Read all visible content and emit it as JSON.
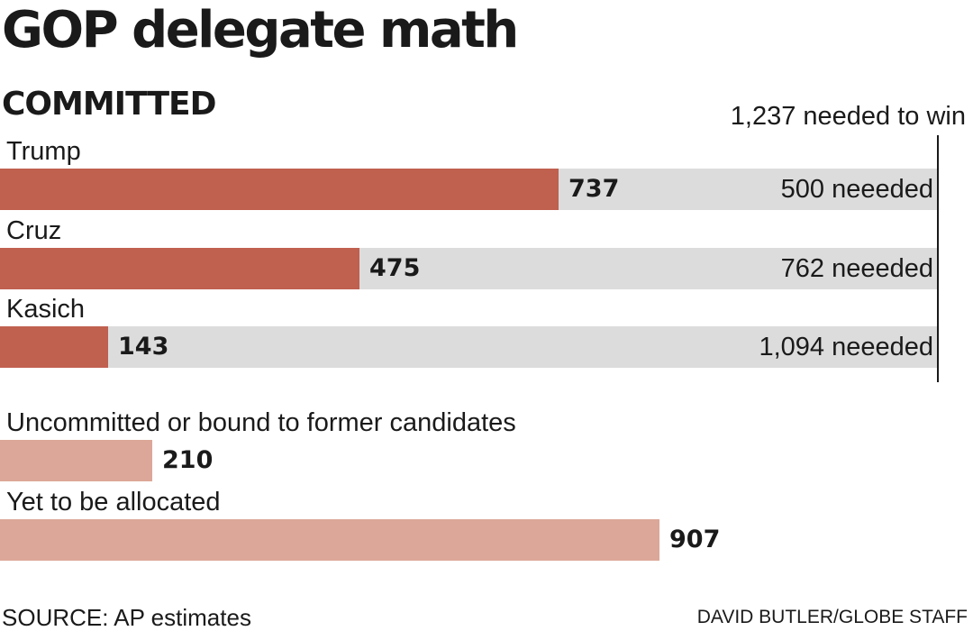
{
  "chart_data": {
    "type": "bar",
    "title": "GOP delegate math",
    "subtitle": "COMMITTED",
    "threshold_label": "1,237 needed to win",
    "threshold": 1237,
    "committed": [
      {
        "name": "Trump",
        "value": 737,
        "value_label": "737",
        "needed_label": "500 neeeded"
      },
      {
        "name": "Cruz",
        "value": 475,
        "value_label": "475",
        "needed_label": "762 neeeded"
      },
      {
        "name": "Kasich",
        "value": 143,
        "value_label": "143",
        "needed_label": "1,094 neeeded"
      }
    ],
    "other": [
      {
        "name": "Uncommitted or bound to former candidates",
        "value": 210,
        "value_label": "210"
      },
      {
        "name": "Yet to be allocated",
        "value": 907,
        "value_label": "907"
      }
    ],
    "colors": {
      "committed": "#c0604f",
      "other": "#dca798",
      "track": "#dcdcdc"
    }
  },
  "footer": {
    "source": "SOURCE: AP estimates",
    "credit": "DAVID BUTLER/GLOBE STAFF"
  }
}
